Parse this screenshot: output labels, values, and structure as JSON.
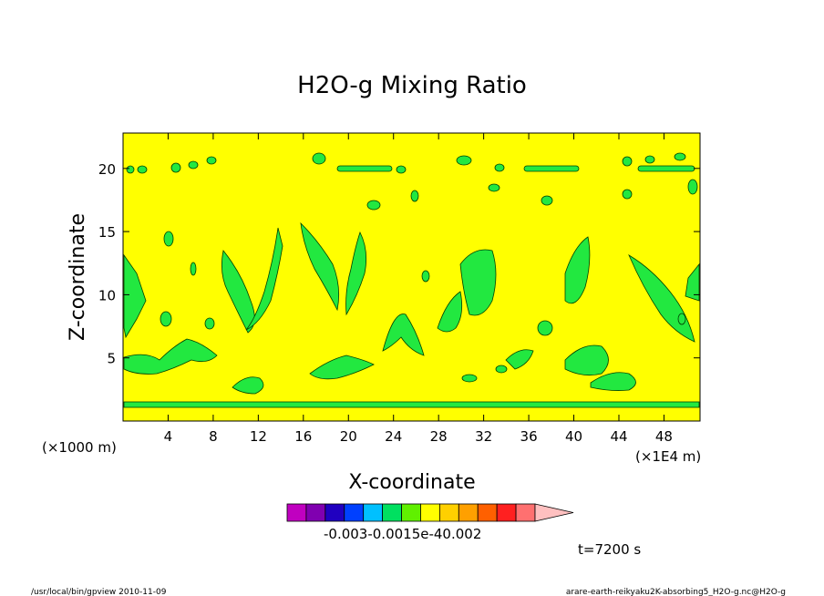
{
  "chart_data": {
    "type": "heatmap",
    "title": "H2O-g Mixing Ratio",
    "xlabel": "X-coordinate",
    "ylabel": "Z-coordinate",
    "x_unit_left": "(×1000 m)",
    "x_unit_right": "(×1E4 m)",
    "xlim": [
      0,
      51.2
    ],
    "ylim": [
      0,
      22.8
    ],
    "x_ticks": [
      4,
      8,
      12,
      16,
      20,
      24,
      28,
      32,
      36,
      40,
      44,
      48
    ],
    "y_ticks": [
      5,
      10,
      15,
      20
    ],
    "colorbar": {
      "colors": [
        "#c000c0",
        "#8000b0",
        "#2000c0",
        "#0040ff",
        "#00c0ff",
        "#00e060",
        "#60f000",
        "#ffff00",
        "#ffd000",
        "#ffa000",
        "#ff6000",
        "#ff2020",
        "#ff7070",
        "#ffc0c0"
      ],
      "label_text": "-0.003-0.0015e-40.002"
    },
    "field": {
      "background_color": "#ffff00",
      "contour_color": "#22e840",
      "note": "Yellow background with scattered green contoured patches of H2O-g mixing ratio"
    },
    "time_label": "t=7200 s"
  },
  "footer": {
    "left": "/usr/local/bin/gpview   2010-11-09",
    "right": "arare-earth-reikyaku2K-absorbing5_H2O-g.nc@H2O-g"
  }
}
